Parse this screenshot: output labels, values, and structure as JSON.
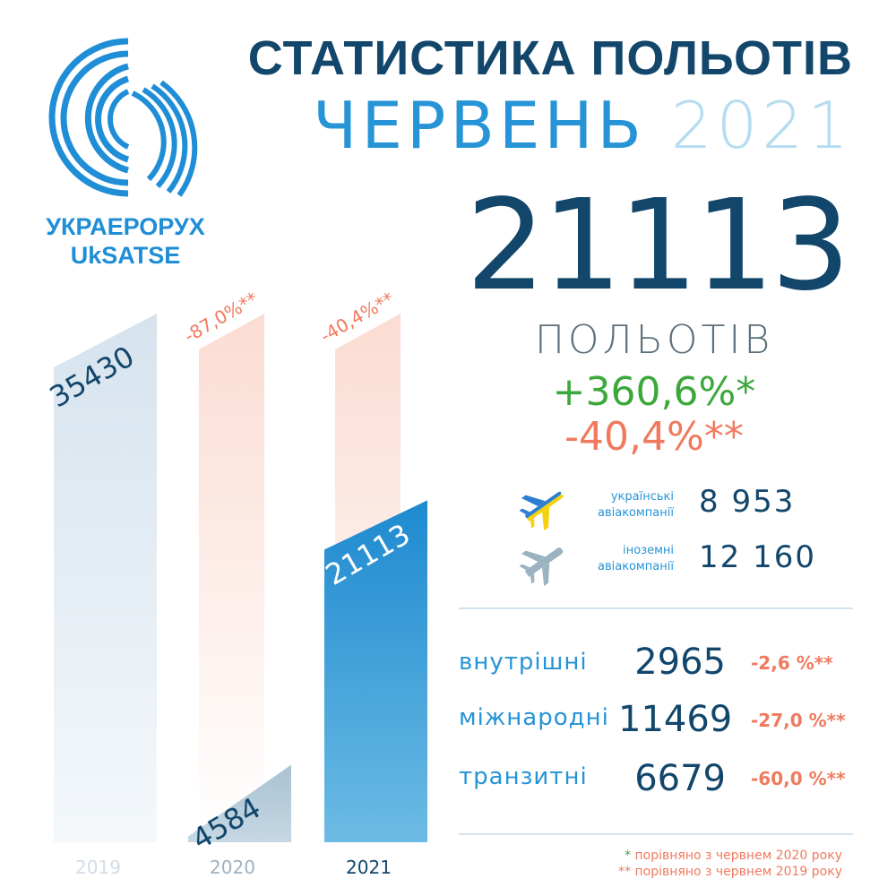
{
  "logo": {
    "text_ua": "УКРАЕРОРУХ",
    "text_en": "UkSATSE"
  },
  "header": {
    "title": "СТАТИСТИКА ПОЛЬОТІВ",
    "month": "ЧЕРВЕНЬ",
    "year": "2021"
  },
  "summary": {
    "total": "21113",
    "total_label": "ПОЛЬОТІВ",
    "change_vs_2020": "+360,6%*",
    "change_vs_2019": "-40,4%**"
  },
  "airlines": [
    {
      "label_line1": "українські",
      "label_line2": "авіакомпанії",
      "value": "8 953",
      "icon": "airplane-ukraine-flag-icon"
    },
    {
      "label_line1": "іноземні",
      "label_line2": "авіакомпанії",
      "value": "12 160",
      "icon": "airplane-grey-icon"
    }
  ],
  "categories": [
    {
      "label": "внутрішні",
      "value": "2965",
      "change": "-2,6 %**"
    },
    {
      "label": "міжнародні",
      "value": "11469",
      "change": "-27,0 %**"
    },
    {
      "label": "транзитні",
      "value": "6679",
      "change": "-60,0 %**"
    }
  ],
  "footnotes": [
    {
      "mark": "*",
      "text": " порівняно з червнем 2020 року"
    },
    {
      "mark": "**",
      "text": " порівняно з червнем 2019 року"
    }
  ],
  "colors": {
    "navy": "#12466b",
    "blue": "#2694d6",
    "light_blue": "#b5dcf1",
    "green": "#3ca83c",
    "orange": "#ef7a5e",
    "bar_2019": "#dde8f1",
    "bar_2020": "#c0d3e0",
    "bar_2021": "#2a95d5",
    "bar_ghost": "#fbe0d8"
  },
  "chart_data": {
    "type": "bar",
    "categories": [
      "2019",
      "2020",
      "2021"
    ],
    "values": [
      35430,
      4584,
      21113
    ],
    "value_labels": [
      "35430",
      "4584",
      "21113"
    ],
    "reference_level": 35430,
    "change_labels": [
      "",
      "-87,0%**",
      "-40,4%**"
    ],
    "ylim": [
      0,
      35430
    ]
  }
}
